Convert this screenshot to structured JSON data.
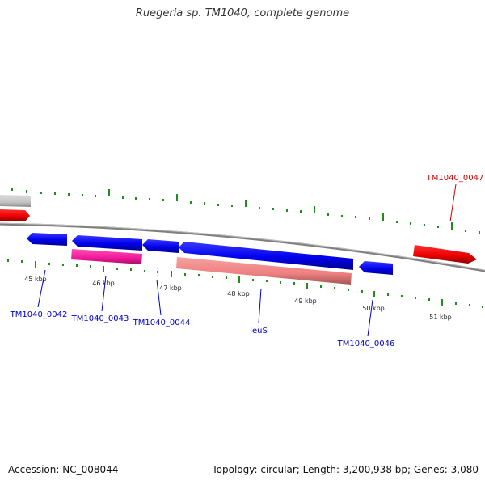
{
  "header": {
    "title": "Ruegeria sp. TM1040, complete genome"
  },
  "footer": {
    "accession": "Accession: NC_008044",
    "summary": "Topology: circular; Length: 3,200,938 bp; Genes: 3,080"
  },
  "scale_labels": [
    "45 kbp",
    "46 kbp",
    "47 kbp",
    "48 kbp",
    "49 kbp",
    "50 kbp",
    "51 kbp"
  ],
  "genes": [
    {
      "label": "TM1040_0042",
      "color": "#0000c8"
    },
    {
      "label": "TM1040_0043",
      "color": "#0000c8"
    },
    {
      "label": "TM1040_0044",
      "color": "#0000c8"
    },
    {
      "label": "leuS",
      "color": "#0000c8"
    },
    {
      "label": "TM1040_0046",
      "color": "#0000c8"
    },
    {
      "label": "TM1040_0047",
      "color": "#d00000"
    }
  ],
  "colors": {
    "backbone": "#808080",
    "tick": "#228b22",
    "gene_blue": "#0000ff",
    "gene_red": "#ff0000",
    "gene_pink": "#ff2a9d",
    "gene_salmon": "#f08080",
    "gene_grey": "#c8c8c8"
  }
}
